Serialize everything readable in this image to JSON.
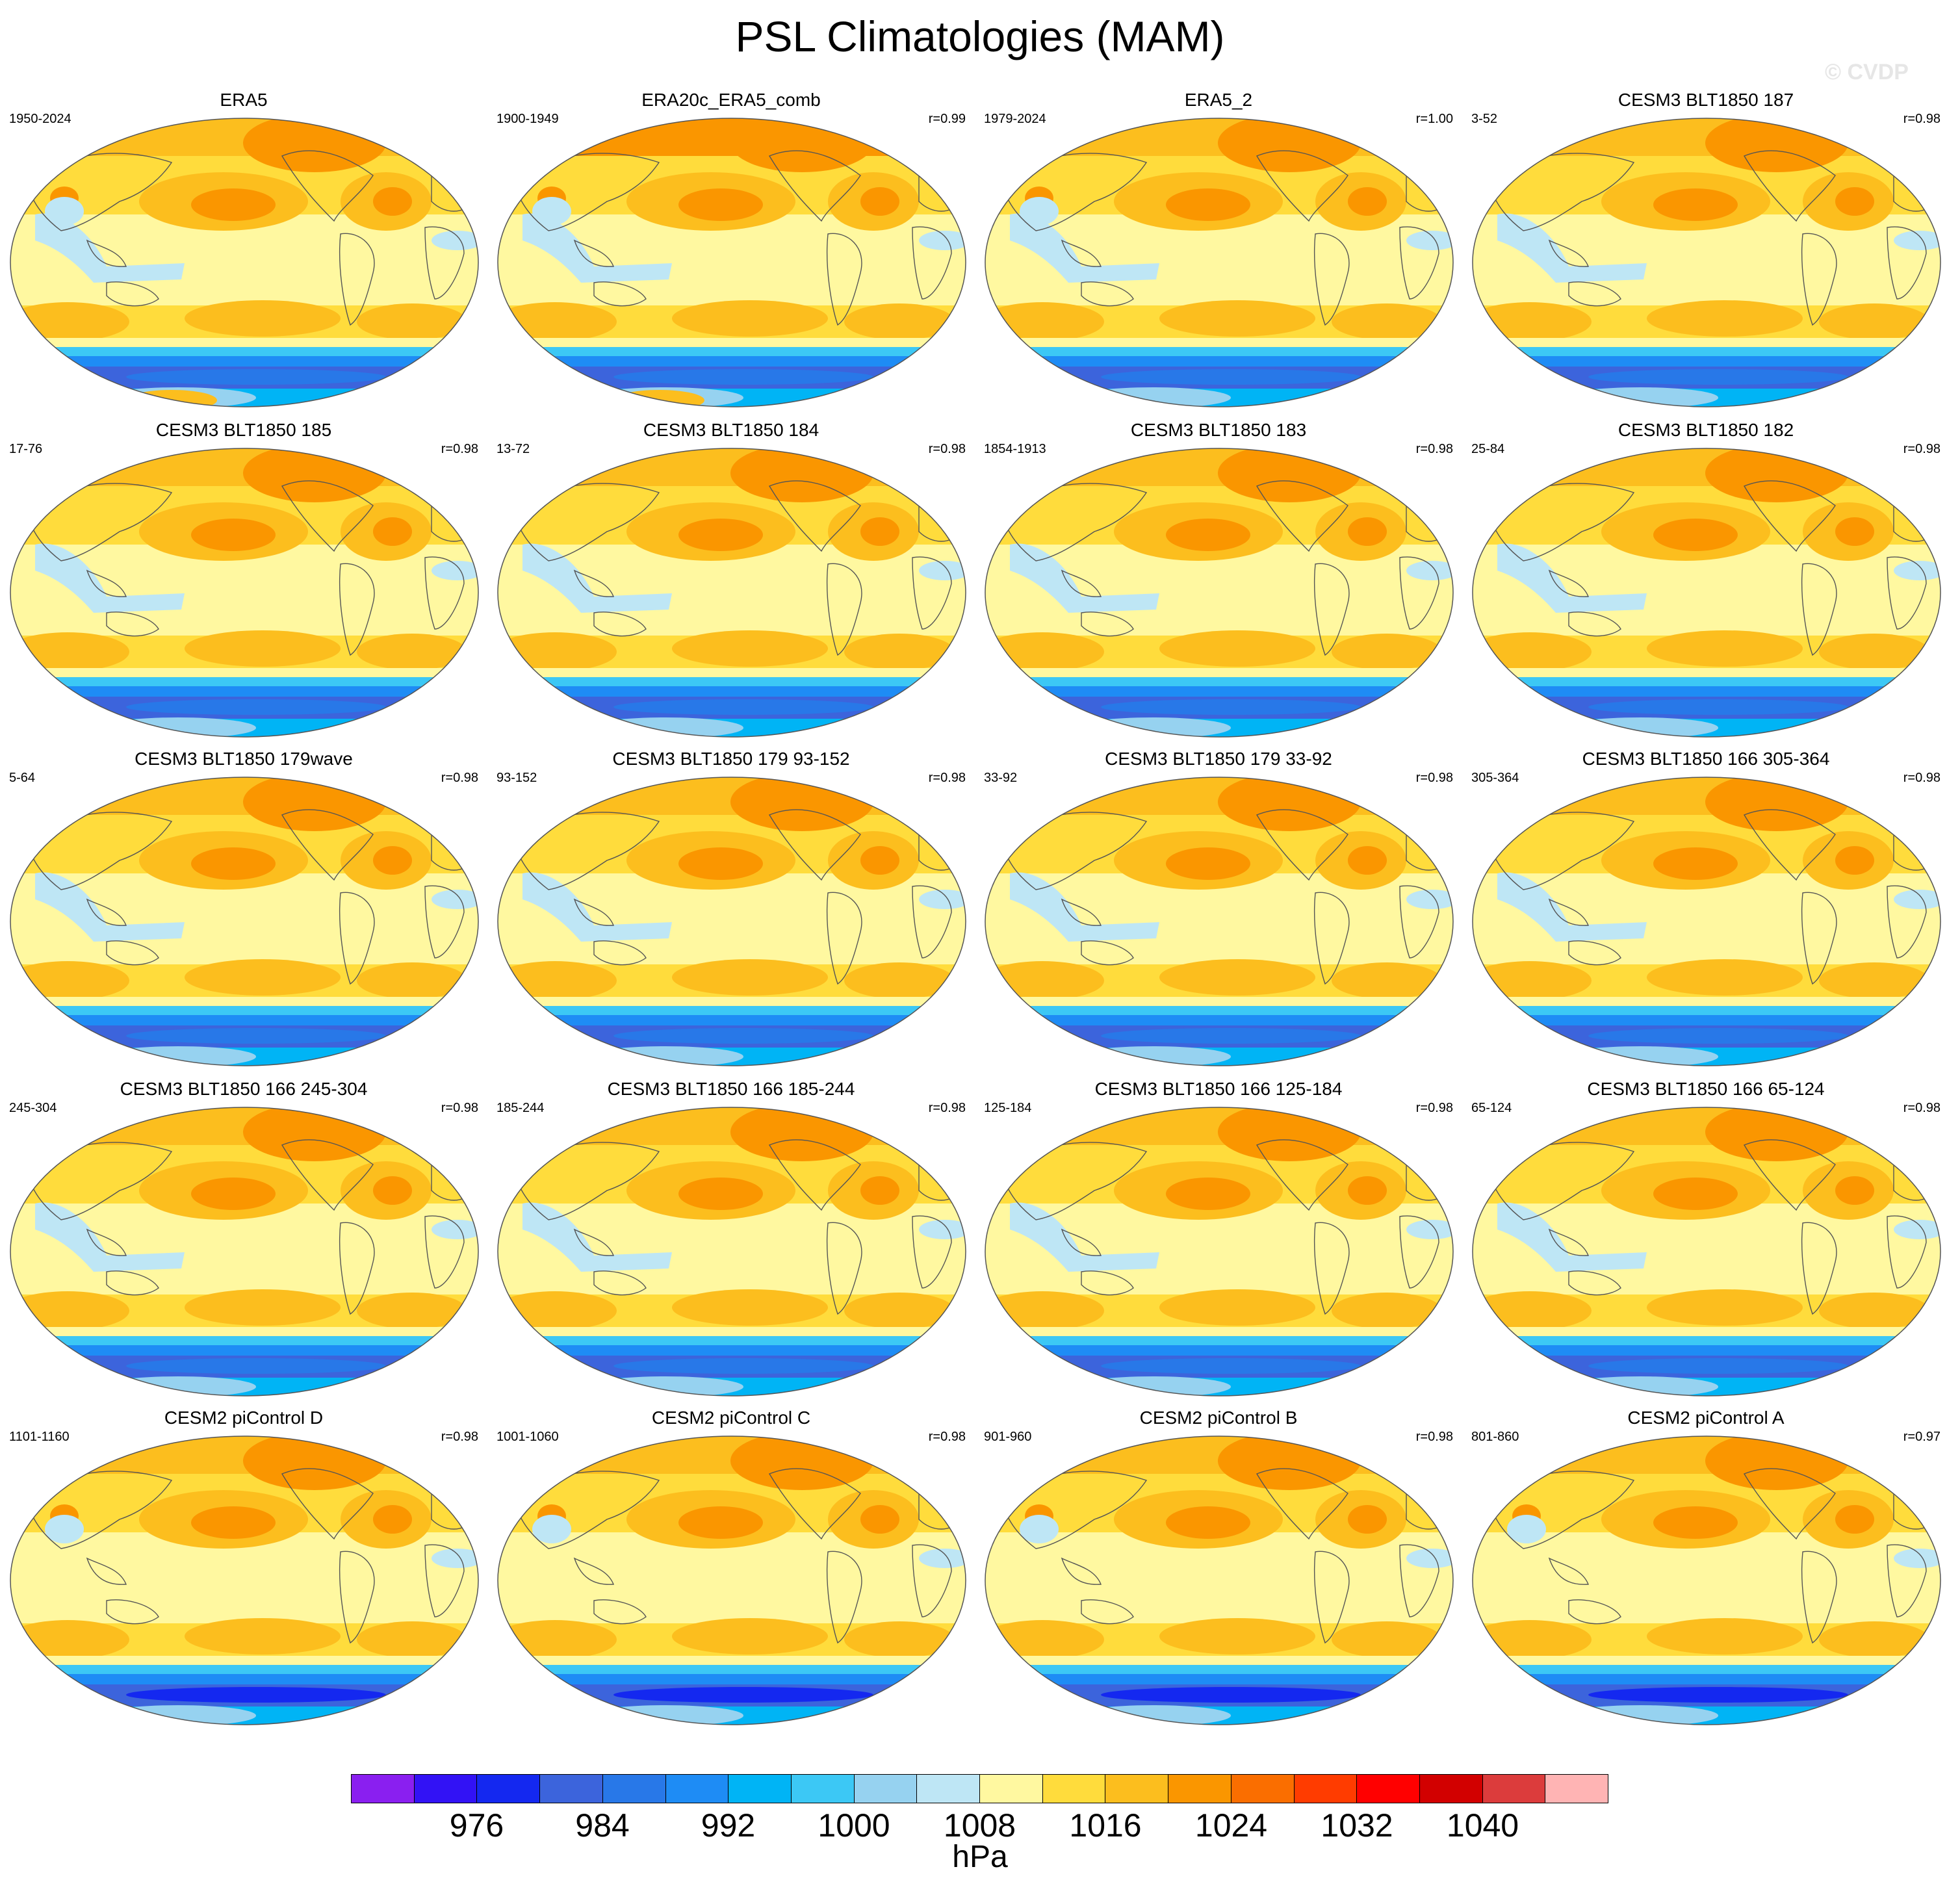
{
  "title": "PSL Climatologies (MAM)",
  "watermark": "© CVDP",
  "colors": {
    "levels": [
      "#8a1ff0",
      "#3212f5",
      "#1428f0",
      "#3c64dc",
      "#2878e8",
      "#1e8cf5",
      "#00b4f5",
      "#3cc8f5",
      "#96d2f0",
      "#bee6f5",
      "#fff8a0",
      "#ffdc3c",
      "#fcbe1e",
      "#fa9600",
      "#fa6e00",
      "#ff3c00",
      "#ff0000",
      "#d20000",
      "#dc3c3c",
      "#ffb4b4"
    ],
    "ocean": "#ffd24a",
    "land_outline": "#555555"
  },
  "panels": [
    {
      "title": "ERA5",
      "years": "1950-2024",
      "r": ""
    },
    {
      "title": "ERA20c_ERA5_comb",
      "years": "1900-1949",
      "r": "r=0.99"
    },
    {
      "title": "ERA5_2",
      "years": "1979-2024",
      "r": "r=1.00"
    },
    {
      "title": "CESM3 BLT1850 187",
      "years": "3-52",
      "r": "r=0.98"
    },
    {
      "title": "CESM3 BLT1850 185",
      "years": "17-76",
      "r": "r=0.98"
    },
    {
      "title": "CESM3 BLT1850 184",
      "years": "13-72",
      "r": "r=0.98"
    },
    {
      "title": "CESM3 BLT1850 183",
      "years": "1854-1913",
      "r": "r=0.98"
    },
    {
      "title": "CESM3 BLT1850 182",
      "years": "25-84",
      "r": "r=0.98"
    },
    {
      "title": "CESM3 BLT1850 179wave",
      "years": "5-64",
      "r": "r=0.98"
    },
    {
      "title": "CESM3 BLT1850 179 93-152",
      "years": "93-152",
      "r": "r=0.98"
    },
    {
      "title": "CESM3 BLT1850 179 33-92",
      "years": "33-92",
      "r": "r=0.98"
    },
    {
      "title": "CESM3 BLT1850 166 305-364",
      "years": "305-364",
      "r": "r=0.98"
    },
    {
      "title": "CESM3 BLT1850 166 245-304",
      "years": "245-304",
      "r": "r=0.98"
    },
    {
      "title": "CESM3 BLT1850 166 185-244",
      "years": "185-244",
      "r": "r=0.98"
    },
    {
      "title": "CESM3 BLT1850 166 125-184",
      "years": "125-184",
      "r": "r=0.98"
    },
    {
      "title": "CESM3 BLT1850 166 65-124",
      "years": "65-124",
      "r": "r=0.98"
    },
    {
      "title": "CESM2 piControl D",
      "years": "1101-1160",
      "r": "r=0.98"
    },
    {
      "title": "CESM2 piControl C",
      "years": "1001-1060",
      "r": "r=0.98"
    },
    {
      "title": "CESM2 piControl B",
      "years": "901-960",
      "r": "r=0.98"
    },
    {
      "title": "CESM2 piControl A",
      "years": "801-860",
      "r": "r=0.97"
    }
  ],
  "colorbar": {
    "tick_labels": [
      "976",
      "984",
      "992",
      "1000",
      "1008",
      "1016",
      "1024",
      "1032",
      "1040"
    ],
    "unit": "hPa"
  }
}
